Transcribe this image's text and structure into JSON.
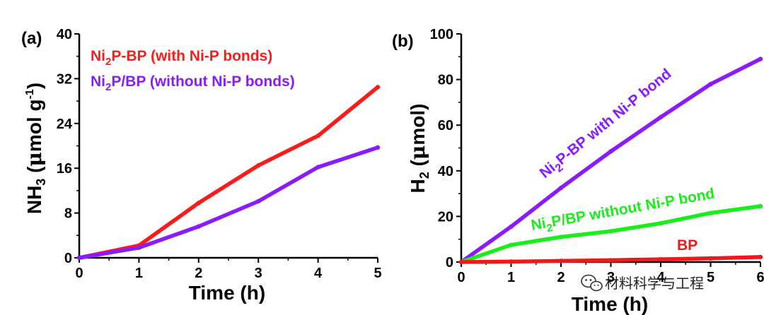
{
  "chart_data": [
    {
      "type": "line",
      "panel_label": "(a)",
      "xlabel": "Time (h)",
      "ylabel_main": "NH",
      "ylabel_sub": "3",
      "ylabel_unit_pre": " (",
      "ylabel_mu": "μ",
      "ylabel_unit_mid": "mol g",
      "ylabel_sup": "-1",
      "ylabel_unit_post": ")",
      "xlim": [
        0,
        5
      ],
      "ylim": [
        0,
        40
      ],
      "x_ticks": [
        "0",
        "1",
        "2",
        "3",
        "4",
        "5"
      ],
      "y_ticks": [
        "0",
        "8",
        "16",
        "24",
        "32",
        "40"
      ],
      "series": [
        {
          "name": "Ni2P-BP (with Ni-P bonds)",
          "legend_pre": "Ni",
          "legend_sub": "2",
          "legend_post": "P-BP (with Ni-P bonds)",
          "color": "#ff1a1a",
          "x": [
            0,
            1,
            2,
            3,
            4,
            5
          ],
          "y": [
            0,
            2.2,
            9.8,
            16.5,
            21.8,
            30.5
          ]
        },
        {
          "name": "Ni2P/BP (without Ni-P bonds)",
          "legend_pre": "Ni",
          "legend_sub": "2",
          "legend_post": "P/BP (without Ni-P bonds)",
          "color": "#8a1aff",
          "x": [
            0,
            1,
            2,
            3,
            4,
            5
          ],
          "y": [
            0,
            1.8,
            5.6,
            10.1,
            16.2,
            19.7
          ]
        }
      ]
    },
    {
      "type": "line",
      "panel_label": "(b)",
      "xlabel": "Time (h)",
      "ylabel_main": "H",
      "ylabel_sub": "2",
      "ylabel_unit_pre": " (",
      "ylabel_mu": "μ",
      "ylabel_unit_mid": "mol",
      "ylabel_unit_post": ")",
      "xlim": [
        0,
        6
      ],
      "ylim": [
        0,
        100
      ],
      "x_ticks": [
        "0",
        "1",
        "2",
        "3",
        "4",
        "5",
        "6"
      ],
      "y_ticks": [
        "0",
        "20",
        "40",
        "60",
        "80",
        "100"
      ],
      "series": [
        {
          "name": "Ni2P-BP with Ni-P bond",
          "label_pre": "Ni",
          "label_sub": "2",
          "label_post": "P-BP with Ni-P bond",
          "color": "#8a1aff",
          "x": [
            0,
            1,
            2,
            3,
            4,
            5,
            6
          ],
          "y": [
            0,
            15.5,
            32.5,
            48.5,
            63.5,
            78,
            89
          ]
        },
        {
          "name": "Ni2P/BP without Ni-P bond",
          "label_pre": "Ni",
          "label_sub": "2",
          "label_post": "P/BP without Ni-P bond",
          "color": "#1aee1a",
          "x": [
            0,
            1,
            2,
            3,
            4,
            5,
            6
          ],
          "y": [
            0,
            7.5,
            11,
            13.5,
            17,
            21.5,
            24.5
          ]
        },
        {
          "name": "BP",
          "label_pre": "BP",
          "color": "#ee1a1a",
          "x": [
            0,
            1,
            2,
            3,
            4,
            5,
            6
          ],
          "y": [
            0,
            0.2,
            0.5,
            0.8,
            1.2,
            1.6,
            2.2
          ]
        }
      ]
    }
  ],
  "watermark": {
    "icon": "wechat-icon",
    "text": "材料科学与工程"
  }
}
